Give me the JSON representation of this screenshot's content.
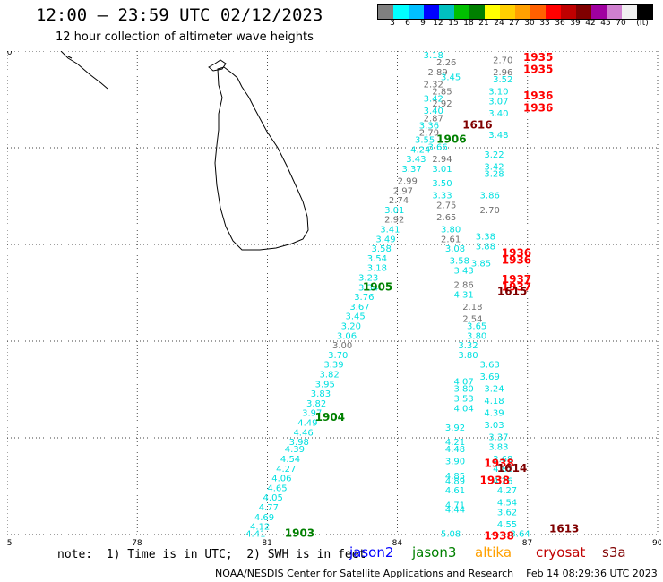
{
  "header": {
    "title": "12:00 — 23:59 UTC 02/12/2023",
    "subtitle": "12 hour collection of altimeter wave heights"
  },
  "colorbar": {
    "unit": "(ft)",
    "colors": [
      "#808080",
      "#00ffff",
      "#00bfff",
      "#0000ff",
      "#00c0c0",
      "#00c000",
      "#008000",
      "#ffff00",
      "#ffd000",
      "#ffa000",
      "#ff6000",
      "#ff0000",
      "#c00000",
      "#800000",
      "#a000a0",
      "#d080d0",
      "#f0f0f0",
      "#000000"
    ],
    "labels": [
      "3",
      "6",
      "9",
      "12",
      "15",
      "18",
      "21",
      "24",
      "27",
      "30",
      "33",
      "36",
      "39",
      "42",
      "45",
      "70"
    ]
  },
  "chart_data": {
    "type": "map",
    "xlim": [
      75,
      90
    ],
    "ylim": [
      0,
      10
    ],
    "x_ticks": [
      "75",
      "78",
      "81",
      "84",
      "87",
      "90"
    ],
    "y_ticks": [
      "0",
      "2",
      "4",
      "6",
      "8",
      "10"
    ],
    "grid": true,
    "observations": [
      {
        "lon": 84.6,
        "lat": 9.85,
        "text": "3.18",
        "color": "#00e0e0"
      },
      {
        "lon": 84.9,
        "lat": 9.7,
        "text": "2.26",
        "color": "#707070"
      },
      {
        "lon": 84.7,
        "lat": 9.5,
        "text": "2.89",
        "color": "#707070"
      },
      {
        "lon": 85.0,
        "lat": 9.4,
        "text": "3.45",
        "color": "#00e0e0"
      },
      {
        "lon": 84.6,
        "lat": 9.25,
        "text": "2.32",
        "color": "#707070"
      },
      {
        "lon": 84.8,
        "lat": 9.1,
        "text": "2.85",
        "color": "#707070"
      },
      {
        "lon": 84.6,
        "lat": 8.95,
        "text": "3.42",
        "color": "#00e0e0"
      },
      {
        "lon": 84.8,
        "lat": 8.85,
        "text": "2.92",
        "color": "#707070"
      },
      {
        "lon": 84.6,
        "lat": 8.7,
        "text": "3.40",
        "color": "#00e0e0"
      },
      {
        "lon": 84.6,
        "lat": 8.55,
        "text": "2.87",
        "color": "#707070"
      },
      {
        "lon": 84.5,
        "lat": 8.4,
        "text": "3.36",
        "color": "#00e0e0"
      },
      {
        "lon": 84.5,
        "lat": 8.25,
        "text": "2.79",
        "color": "#707070"
      },
      {
        "lon": 84.4,
        "lat": 8.1,
        "text": "3.55",
        "color": "#00e0e0"
      },
      {
        "lon": 84.7,
        "lat": 7.95,
        "text": "3.66",
        "color": "#00e0e0"
      },
      {
        "lon": 84.3,
        "lat": 7.9,
        "text": "4.24",
        "color": "#00e0e0"
      },
      {
        "lon": 84.2,
        "lat": 7.7,
        "text": "3.43",
        "color": "#00e0e0"
      },
      {
        "lon": 84.8,
        "lat": 7.7,
        "text": "2.94",
        "color": "#707070"
      },
      {
        "lon": 84.1,
        "lat": 7.5,
        "text": "3.37",
        "color": "#00e0e0"
      },
      {
        "lon": 84.8,
        "lat": 7.5,
        "text": "3.01",
        "color": "#00e0e0"
      },
      {
        "lon": 84.0,
        "lat": 7.25,
        "text": "2.99",
        "color": "#707070"
      },
      {
        "lon": 84.8,
        "lat": 7.2,
        "text": "3.50",
        "color": "#00e0e0"
      },
      {
        "lon": 83.9,
        "lat": 7.05,
        "text": "2.97",
        "color": "#707070"
      },
      {
        "lon": 84.8,
        "lat": 6.95,
        "text": "3.33",
        "color": "#00e0e0"
      },
      {
        "lon": 83.8,
        "lat": 6.85,
        "text": "2.74",
        "color": "#707070"
      },
      {
        "lon": 84.9,
        "lat": 6.75,
        "text": "2.75",
        "color": "#707070"
      },
      {
        "lon": 83.7,
        "lat": 6.65,
        "text": "3.01",
        "color": "#00e0e0"
      },
      {
        "lon": 83.7,
        "lat": 6.45,
        "text": "2.92",
        "color": "#707070"
      },
      {
        "lon": 84.9,
        "lat": 6.5,
        "text": "2.65",
        "color": "#707070"
      },
      {
        "lon": 83.6,
        "lat": 6.25,
        "text": "3.41",
        "color": "#00e0e0"
      },
      {
        "lon": 85.0,
        "lat": 6.25,
        "text": "3.80",
        "color": "#00e0e0"
      },
      {
        "lon": 83.5,
        "lat": 6.05,
        "text": "3.49",
        "color": "#00e0e0"
      },
      {
        "lon": 85.0,
        "lat": 6.05,
        "text": "2.61",
        "color": "#707070"
      },
      {
        "lon": 83.4,
        "lat": 5.85,
        "text": "3.58",
        "color": "#00e0e0"
      },
      {
        "lon": 85.1,
        "lat": 5.85,
        "text": "3.08",
        "color": "#00e0e0"
      },
      {
        "lon": 83.3,
        "lat": 5.65,
        "text": "3.54",
        "color": "#00e0e0"
      },
      {
        "lon": 85.2,
        "lat": 5.6,
        "text": "3.58",
        "color": "#00e0e0"
      },
      {
        "lon": 83.3,
        "lat": 5.45,
        "text": "3.18",
        "color": "#00e0e0"
      },
      {
        "lon": 85.3,
        "lat": 5.4,
        "text": "3.43",
        "color": "#00e0e0"
      },
      {
        "lon": 83.1,
        "lat": 5.25,
        "text": "3.23",
        "color": "#00e0e0"
      },
      {
        "lon": 83.1,
        "lat": 5.05,
        "text": "3.34",
        "color": "#00e0e0"
      },
      {
        "lon": 85.3,
        "lat": 5.1,
        "text": "2.86",
        "color": "#707070"
      },
      {
        "lon": 83.0,
        "lat": 4.85,
        "text": "3.76",
        "color": "#00e0e0"
      },
      {
        "lon": 85.3,
        "lat": 4.9,
        "text": "4.31",
        "color": "#00e0e0"
      },
      {
        "lon": 82.9,
        "lat": 4.65,
        "text": "3.67",
        "color": "#00e0e0"
      },
      {
        "lon": 85.5,
        "lat": 4.65,
        "text": "2.18",
        "color": "#707070"
      },
      {
        "lon": 82.8,
        "lat": 4.45,
        "text": "3.45",
        "color": "#00e0e0"
      },
      {
        "lon": 85.5,
        "lat": 4.4,
        "text": "2.54",
        "color": "#707070"
      },
      {
        "lon": 82.7,
        "lat": 4.25,
        "text": "3.20",
        "color": "#00e0e0"
      },
      {
        "lon": 85.6,
        "lat": 4.25,
        "text": "3.65",
        "color": "#00e0e0"
      },
      {
        "lon": 82.6,
        "lat": 4.05,
        "text": "3.06",
        "color": "#00e0e0"
      },
      {
        "lon": 85.6,
        "lat": 4.05,
        "text": "3.80",
        "color": "#00e0e0"
      },
      {
        "lon": 82.5,
        "lat": 3.85,
        "text": "3.00",
        "color": "#707070"
      },
      {
        "lon": 85.4,
        "lat": 3.85,
        "text": "3.32",
        "color": "#00e0e0"
      },
      {
        "lon": 82.4,
        "lat": 3.65,
        "text": "3.70",
        "color": "#00e0e0"
      },
      {
        "lon": 85.4,
        "lat": 3.65,
        "text": "3.80",
        "color": "#00e0e0"
      },
      {
        "lon": 82.3,
        "lat": 3.45,
        "text": "3.39",
        "color": "#00e0e0"
      },
      {
        "lon": 85.9,
        "lat": 3.45,
        "text": "3.63",
        "color": "#00e0e0"
      },
      {
        "lon": 82.2,
        "lat": 3.25,
        "text": "3.82",
        "color": "#00e0e0"
      },
      {
        "lon": 85.9,
        "lat": 3.2,
        "text": "3.69",
        "color": "#00e0e0"
      },
      {
        "lon": 82.1,
        "lat": 3.05,
        "text": "3.95",
        "color": "#00e0e0"
      },
      {
        "lon": 85.3,
        "lat": 3.1,
        "text": "4.07",
        "color": "#00e0e0"
      },
      {
        "lon": 85.3,
        "lat": 2.95,
        "text": "3.80",
        "color": "#00e0e0"
      },
      {
        "lon": 86.0,
        "lat": 2.95,
        "text": "3.24",
        "color": "#00e0e0"
      },
      {
        "lon": 82.0,
        "lat": 2.85,
        "text": "3.83",
        "color": "#00e0e0"
      },
      {
        "lon": 85.3,
        "lat": 2.75,
        "text": "3.53",
        "color": "#00e0e0"
      },
      {
        "lon": 86.0,
        "lat": 2.7,
        "text": "4.18",
        "color": "#00e0e0"
      },
      {
        "lon": 81.9,
        "lat": 2.65,
        "text": "3.82",
        "color": "#00e0e0"
      },
      {
        "lon": 85.3,
        "lat": 2.55,
        "text": "4.04",
        "color": "#00e0e0"
      },
      {
        "lon": 81.8,
        "lat": 2.45,
        "text": "3.97",
        "color": "#00e0e0"
      },
      {
        "lon": 86.0,
        "lat": 2.45,
        "text": "4.39",
        "color": "#00e0e0"
      },
      {
        "lon": 81.7,
        "lat": 2.25,
        "text": "4.49",
        "color": "#00e0e0"
      },
      {
        "lon": 86.0,
        "lat": 2.2,
        "text": "3.03",
        "color": "#00e0e0"
      },
      {
        "lon": 85.1,
        "lat": 2.15,
        "text": "3.92",
        "color": "#00e0e0"
      },
      {
        "lon": 81.6,
        "lat": 2.05,
        "text": "4.46",
        "color": "#00e0e0"
      },
      {
        "lon": 86.1,
        "lat": 1.95,
        "text": "3.37",
        "color": "#00e0e0"
      },
      {
        "lon": 81.5,
        "lat": 1.85,
        "text": "3.98",
        "color": "#00e0e0"
      },
      {
        "lon": 85.1,
        "lat": 1.85,
        "text": "4.21",
        "color": "#00e0e0"
      },
      {
        "lon": 86.1,
        "lat": 1.75,
        "text": "3.83",
        "color": "#00e0e0"
      },
      {
        "lon": 81.4,
        "lat": 1.7,
        "text": "4.39",
        "color": "#00e0e0"
      },
      {
        "lon": 85.1,
        "lat": 1.7,
        "text": "4.48",
        "color": "#00e0e0"
      },
      {
        "lon": 86.2,
        "lat": 1.5,
        "text": "3.68",
        "color": "#00e0e0"
      },
      {
        "lon": 81.3,
        "lat": 1.5,
        "text": "4.54",
        "color": "#00e0e0"
      },
      {
        "lon": 85.1,
        "lat": 1.45,
        "text": "3.90",
        "color": "#00e0e0"
      },
      {
        "lon": 86.2,
        "lat": 1.3,
        "text": "4.82",
        "color": "#00e0e0"
      },
      {
        "lon": 81.2,
        "lat": 1.3,
        "text": "4.27",
        "color": "#00e0e0"
      },
      {
        "lon": 81.1,
        "lat": 1.1,
        "text": "4.06",
        "color": "#00e0e0"
      },
      {
        "lon": 85.1,
        "lat": 1.15,
        "text": "4.85",
        "color": "#00e0e0"
      },
      {
        "lon": 85.1,
        "lat": 1.05,
        "text": "4.89",
        "color": "#00e0e0"
      },
      {
        "lon": 86.2,
        "lat": 1.05,
        "text": "4.26",
        "color": "#00e0e0"
      },
      {
        "lon": 81.0,
        "lat": 0.9,
        "text": "4.65",
        "color": "#00e0e0"
      },
      {
        "lon": 85.1,
        "lat": 0.85,
        "text": "4.61",
        "color": "#00e0e0"
      },
      {
        "lon": 86.3,
        "lat": 0.85,
        "text": "4.27",
        "color": "#00e0e0"
      },
      {
        "lon": 80.9,
        "lat": 0.7,
        "text": "4.05",
        "color": "#00e0e0"
      },
      {
        "lon": 86.3,
        "lat": 0.6,
        "text": "4.54",
        "color": "#00e0e0"
      },
      {
        "lon": 85.1,
        "lat": 0.55,
        "text": "4.71",
        "color": "#00e0e0"
      },
      {
        "lon": 85.1,
        "lat": 0.45,
        "text": "4.44",
        "color": "#00e0e0"
      },
      {
        "lon": 80.8,
        "lat": 0.5,
        "text": "4.77",
        "color": "#00e0e0"
      },
      {
        "lon": 86.3,
        "lat": 0.4,
        "text": "3.62",
        "color": "#00e0e0"
      },
      {
        "lon": 80.7,
        "lat": 0.3,
        "text": "4.69",
        "color": "#00e0e0"
      },
      {
        "lon": 86.3,
        "lat": 0.15,
        "text": "4.55",
        "color": "#00e0e0"
      },
      {
        "lon": 80.6,
        "lat": 0.1,
        "text": "4.12",
        "color": "#00e0e0"
      },
      {
        "lon": 80.5,
        "lat": -0.05,
        "text": "4.41",
        "color": "#00e0e0"
      },
      {
        "lon": 85.0,
        "lat": -0.05,
        "text": "5.08",
        "color": "#00e0e0"
      },
      {
        "lon": 86.6,
        "lat": -0.05,
        "text": "3.64",
        "color": "#00e0e0"
      },
      {
        "lon": 86.2,
        "lat": 9.75,
        "text": "2.70",
        "color": "#707070"
      },
      {
        "lon": 86.2,
        "lat": 9.5,
        "text": "2.96",
        "color": "#707070"
      },
      {
        "lon": 86.2,
        "lat": 9.35,
        "text": "3.52",
        "color": "#00e0e0"
      },
      {
        "lon": 86.1,
        "lat": 9.1,
        "text": "3.10",
        "color": "#00e0e0"
      },
      {
        "lon": 86.1,
        "lat": 8.9,
        "text": "3.07",
        "color": "#00e0e0"
      },
      {
        "lon": 86.1,
        "lat": 8.65,
        "text": "3.40",
        "color": "#00e0e0"
      },
      {
        "lon": 86.1,
        "lat": 8.2,
        "text": "3.48",
        "color": "#00e0e0"
      },
      {
        "lon": 86.0,
        "lat": 7.8,
        "text": "3.22",
        "color": "#00e0e0"
      },
      {
        "lon": 86.0,
        "lat": 7.55,
        "text": "3.42",
        "color": "#00e0e0"
      },
      {
        "lon": 86.0,
        "lat": 7.4,
        "text": "3.28",
        "color": "#00e0e0"
      },
      {
        "lon": 85.9,
        "lat": 6.95,
        "text": "3.86",
        "color": "#00e0e0"
      },
      {
        "lon": 85.9,
        "lat": 6.65,
        "text": "2.70",
        "color": "#707070"
      },
      {
        "lon": 85.8,
        "lat": 6.1,
        "text": "3.38",
        "color": "#00e0e0"
      },
      {
        "lon": 85.8,
        "lat": 5.9,
        "text": "3.88",
        "color": "#00e0e0"
      },
      {
        "lon": 85.7,
        "lat": 5.55,
        "text": "3.85",
        "color": "#00e0e0"
      }
    ],
    "pass_times": [
      {
        "lon": 85.5,
        "lat": 8.4,
        "text": "1616",
        "color": "#800000"
      },
      {
        "lon": 84.9,
        "lat": 8.1,
        "text": "1906",
        "color": "#008000"
      },
      {
        "lon": 86.9,
        "lat": 9.8,
        "text": "1935",
        "color": "#ff0000"
      },
      {
        "lon": 86.9,
        "lat": 9.55,
        "text": "1935",
        "color": "#ff0000"
      },
      {
        "lon": 86.9,
        "lat": 9.0,
        "text": "1936",
        "color": "#ff0000"
      },
      {
        "lon": 86.9,
        "lat": 8.75,
        "text": "1936",
        "color": "#ff0000"
      },
      {
        "lon": 86.4,
        "lat": 5.75,
        "text": "1936",
        "color": "#ff0000"
      },
      {
        "lon": 86.4,
        "lat": 5.6,
        "text": "1936",
        "color": "#ff0000"
      },
      {
        "lon": 86.4,
        "lat": 5.2,
        "text": "1937",
        "color": "#ff0000"
      },
      {
        "lon": 86.4,
        "lat": 5.05,
        "text": "1937",
        "color": "#ff0000"
      },
      {
        "lon": 86.3,
        "lat": 4.95,
        "text": "1615",
        "color": "#800000"
      },
      {
        "lon": 83.2,
        "lat": 5.05,
        "text": "1905",
        "color": "#008000"
      },
      {
        "lon": 82.1,
        "lat": 2.35,
        "text": "1904",
        "color": "#008000"
      },
      {
        "lon": 86.0,
        "lat": 1.4,
        "text": "1938",
        "color": "#ff0000"
      },
      {
        "lon": 86.3,
        "lat": 1.3,
        "text": "1614",
        "color": "#800000"
      },
      {
        "lon": 85.9,
        "lat": 1.05,
        "text": "1938",
        "color": "#ff0000"
      },
      {
        "lon": 81.4,
        "lat": -0.05,
        "text": "1903",
        "color": "#008000"
      },
      {
        "lon": 86.0,
        "lat": -0.1,
        "text": "1938",
        "color": "#ff0000"
      },
      {
        "lon": 87.5,
        "lat": 0.05,
        "text": "1613",
        "color": "#800000"
      }
    ]
  },
  "notes": {
    "text": "note:  1) Time is in UTC;  2) SWH is in feet"
  },
  "satellites": [
    {
      "name": "jason2",
      "color": "#0000ff"
    },
    {
      "name": "jason3",
      "color": "#008000"
    },
    {
      "name": "altika",
      "color": "#ffa000"
    },
    {
      "name": "cryosat",
      "color": "#c00000"
    },
    {
      "name": "s3a",
      "color": "#800000"
    }
  ],
  "footer": {
    "text": "NOAA/NESDIS Center for Satellite Applications and Research    Feb 14 08:29:36 UTC 2023"
  }
}
